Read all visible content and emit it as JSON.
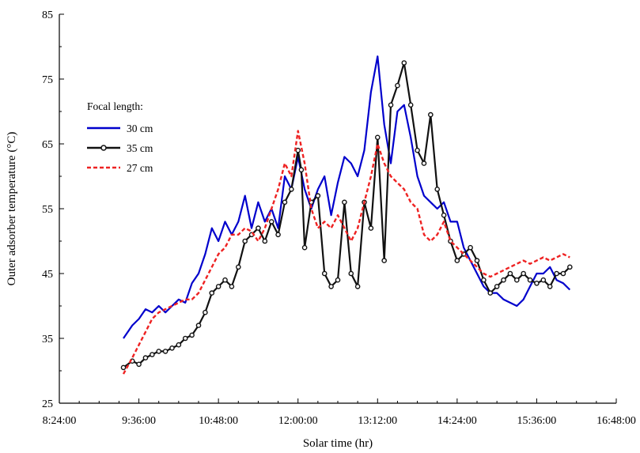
{
  "chart_data": {
    "type": "line",
    "title": "",
    "xlabel": "Solar time (hr)",
    "ylabel": "Outer adsorber temperature (°C)",
    "ylim": [
      25,
      85
    ],
    "yticks": [
      "25",
      "35",
      "45",
      "55",
      "65",
      "75",
      "85"
    ],
    "xlim": [
      "8:24:00",
      "16:48:00"
    ],
    "xticks": [
      "8:24:00",
      "9:36:00",
      "10:48:00",
      "12:00:00",
      "13:12:00",
      "14:24:00",
      "15:36:00",
      "16:48:00"
    ],
    "legend": {
      "title": "Focal length:",
      "position": "upper-left"
    },
    "series": [
      {
        "name": "30 cm",
        "color": "#0000cc",
        "style": "solid",
        "points": [
          [
            "9:22",
            35
          ],
          [
            "9:30",
            37
          ],
          [
            "9:36",
            38
          ],
          [
            "9:42",
            39.5
          ],
          [
            "9:48",
            39
          ],
          [
            "9:54",
            40
          ],
          [
            "10:00",
            39
          ],
          [
            "10:06",
            40
          ],
          [
            "10:12",
            41
          ],
          [
            "10:18",
            40.5
          ],
          [
            "10:24",
            43.5
          ],
          [
            "10:30",
            45
          ],
          [
            "10:36",
            48
          ],
          [
            "10:42",
            52
          ],
          [
            "10:48",
            50
          ],
          [
            "10:54",
            53
          ],
          [
            "11:00",
            51
          ],
          [
            "11:06",
            53
          ],
          [
            "11:12",
            57
          ],
          [
            "11:18",
            52
          ],
          [
            "11:24",
            56
          ],
          [
            "11:30",
            53
          ],
          [
            "11:36",
            55
          ],
          [
            "11:42",
            52
          ],
          [
            "11:48",
            60
          ],
          [
            "11:54",
            58
          ],
          [
            "12:00",
            63
          ],
          [
            "12:06",
            58
          ],
          [
            "12:12",
            55
          ],
          [
            "12:18",
            58
          ],
          [
            "12:24",
            60
          ],
          [
            "12:30",
            54
          ],
          [
            "12:36",
            59
          ],
          [
            "12:42",
            63
          ],
          [
            "12:48",
            62
          ],
          [
            "12:54",
            60
          ],
          [
            "13:00",
            64
          ],
          [
            "13:06",
            73
          ],
          [
            "13:12",
            78.5
          ],
          [
            "13:18",
            68
          ],
          [
            "13:24",
            62
          ],
          [
            "13:30",
            70
          ],
          [
            "13:36",
            71
          ],
          [
            "13:42",
            66
          ],
          [
            "13:48",
            60
          ],
          [
            "13:54",
            57
          ],
          [
            "14:00",
            56
          ],
          [
            "14:06",
            55
          ],
          [
            "14:12",
            56
          ],
          [
            "14:18",
            53
          ],
          [
            "14:24",
            53
          ],
          [
            "14:30",
            49
          ],
          [
            "14:36",
            47
          ],
          [
            "14:42",
            45
          ],
          [
            "14:48",
            43
          ],
          [
            "14:54",
            42
          ],
          [
            "15:00",
            42
          ],
          [
            "15:06",
            41
          ],
          [
            "15:12",
            40.5
          ],
          [
            "15:18",
            40
          ],
          [
            "15:24",
            41
          ],
          [
            "15:30",
            43
          ],
          [
            "15:36",
            45
          ],
          [
            "15:42",
            45
          ],
          [
            "15:48",
            46
          ],
          [
            "15:54",
            44
          ],
          [
            "16:00",
            43.5
          ],
          [
            "16:06",
            42.5
          ]
        ]
      },
      {
        "name": "35 cm",
        "color": "#111111",
        "style": "solid-markers",
        "points": [
          [
            "9:22",
            30.5
          ],
          [
            "9:30",
            31.5
          ],
          [
            "9:36",
            31
          ],
          [
            "9:42",
            32
          ],
          [
            "9:48",
            32.5
          ],
          [
            "9:54",
            33
          ],
          [
            "10:00",
            33
          ],
          [
            "10:06",
            33.5
          ],
          [
            "10:12",
            34
          ],
          [
            "10:18",
            35
          ],
          [
            "10:24",
            35.5
          ],
          [
            "10:30",
            37
          ],
          [
            "10:36",
            39
          ],
          [
            "10:42",
            42
          ],
          [
            "10:48",
            43
          ],
          [
            "10:54",
            44
          ],
          [
            "11:00",
            43
          ],
          [
            "11:06",
            46
          ],
          [
            "11:12",
            50
          ],
          [
            "11:18",
            51
          ],
          [
            "11:24",
            52
          ],
          [
            "11:30",
            50
          ],
          [
            "11:36",
            53
          ],
          [
            "11:42",
            51
          ],
          [
            "11:48",
            56
          ],
          [
            "11:54",
            58
          ],
          [
            "12:00",
            64
          ],
          [
            "12:03",
            61
          ],
          [
            "12:06",
            49
          ],
          [
            "12:12",
            56
          ],
          [
            "12:18",
            57
          ],
          [
            "12:24",
            45
          ],
          [
            "12:30",
            43
          ],
          [
            "12:36",
            44
          ],
          [
            "12:42",
            56
          ],
          [
            "12:48",
            45
          ],
          [
            "12:54",
            43
          ],
          [
            "13:00",
            56
          ],
          [
            "13:06",
            52
          ],
          [
            "13:12",
            66
          ],
          [
            "13:18",
            47
          ],
          [
            "13:24",
            71
          ],
          [
            "13:30",
            74
          ],
          [
            "13:36",
            77.5
          ],
          [
            "13:42",
            71
          ],
          [
            "13:48",
            64
          ],
          [
            "13:54",
            62
          ],
          [
            "14:00",
            69.5
          ],
          [
            "14:06",
            58
          ],
          [
            "14:12",
            54
          ],
          [
            "14:18",
            50
          ],
          [
            "14:24",
            47
          ],
          [
            "14:30",
            48
          ],
          [
            "14:36",
            49
          ],
          [
            "14:42",
            47
          ],
          [
            "14:48",
            44
          ],
          [
            "14:54",
            42
          ],
          [
            "15:00",
            43
          ],
          [
            "15:06",
            44
          ],
          [
            "15:12",
            45
          ],
          [
            "15:18",
            44
          ],
          [
            "15:24",
            45
          ],
          [
            "15:30",
            44
          ],
          [
            "15:36",
            43.5
          ],
          [
            "15:42",
            44
          ],
          [
            "15:48",
            43
          ],
          [
            "15:54",
            45
          ],
          [
            "16:00",
            45
          ],
          [
            "16:06",
            46
          ]
        ]
      },
      {
        "name": "27 cm",
        "color": "#ee2222",
        "style": "dashed",
        "points": [
          [
            "9:22",
            29.5
          ],
          [
            "9:30",
            32
          ],
          [
            "9:36",
            34
          ],
          [
            "9:42",
            36
          ],
          [
            "9:48",
            38
          ],
          [
            "9:54",
            39
          ],
          [
            "10:00",
            39.5
          ],
          [
            "10:06",
            40
          ],
          [
            "10:12",
            40.5
          ],
          [
            "10:18",
            41
          ],
          [
            "10:24",
            41
          ],
          [
            "10:30",
            42
          ],
          [
            "10:36",
            44
          ],
          [
            "10:42",
            46
          ],
          [
            "10:48",
            48
          ],
          [
            "10:54",
            49
          ],
          [
            "11:00",
            51
          ],
          [
            "11:06",
            51
          ],
          [
            "11:12",
            52
          ],
          [
            "11:18",
            51.5
          ],
          [
            "11:24",
            50
          ],
          [
            "11:30",
            52
          ],
          [
            "11:36",
            55
          ],
          [
            "11:42",
            58
          ],
          [
            "11:48",
            62
          ],
          [
            "11:54",
            60
          ],
          [
            "12:00",
            67
          ],
          [
            "12:06",
            62
          ],
          [
            "12:12",
            55
          ],
          [
            "12:18",
            52
          ],
          [
            "12:24",
            53
          ],
          [
            "12:30",
            52
          ],
          [
            "12:36",
            54
          ],
          [
            "12:42",
            52
          ],
          [
            "12:48",
            50
          ],
          [
            "12:54",
            52
          ],
          [
            "13:00",
            56
          ],
          [
            "13:06",
            60
          ],
          [
            "13:12",
            65
          ],
          [
            "13:18",
            62
          ],
          [
            "13:24",
            60
          ],
          [
            "13:30",
            59
          ],
          [
            "13:36",
            58
          ],
          [
            "13:42",
            56
          ],
          [
            "13:48",
            55
          ],
          [
            "13:54",
            51
          ],
          [
            "14:00",
            50
          ],
          [
            "14:06",
            51
          ],
          [
            "14:12",
            53
          ],
          [
            "14:18",
            50
          ],
          [
            "14:24",
            49
          ],
          [
            "14:30",
            48
          ],
          [
            "14:36",
            47
          ],
          [
            "14:42",
            46
          ],
          [
            "14:48",
            45
          ],
          [
            "14:54",
            44.5
          ],
          [
            "15:00",
            45
          ],
          [
            "15:06",
            45.5
          ],
          [
            "15:12",
            46
          ],
          [
            "15:18",
            46.5
          ],
          [
            "15:24",
            47
          ],
          [
            "15:30",
            46.5
          ],
          [
            "15:36",
            47
          ],
          [
            "15:42",
            47.5
          ],
          [
            "15:48",
            47
          ],
          [
            "15:54",
            47.5
          ],
          [
            "16:00",
            48
          ],
          [
            "16:06",
            47.5
          ]
        ]
      }
    ]
  }
}
